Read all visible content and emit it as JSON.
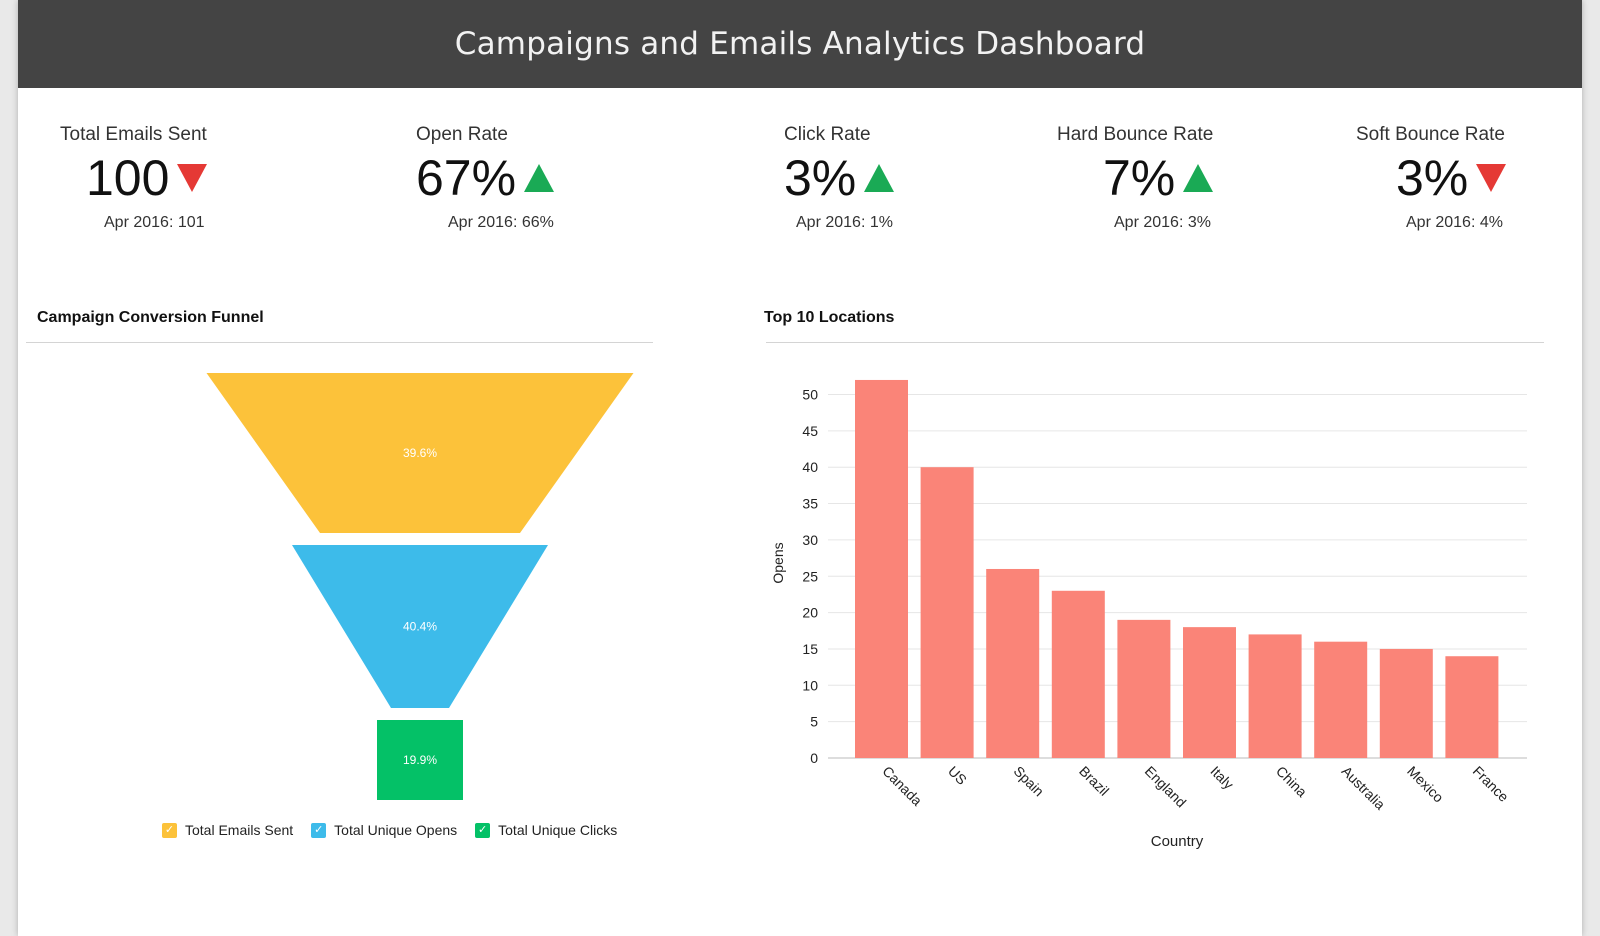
{
  "header": {
    "title": "Campaigns and Emails Analytics Dashboard"
  },
  "kpis": [
    {
      "label": "Total Emails Sent",
      "value": "100",
      "trend": "down",
      "comparison": "Apr 2016: 101"
    },
    {
      "label": "Open Rate",
      "value": "67%",
      "trend": "up",
      "comparison": "Apr 2016: 66%"
    },
    {
      "label": "Click Rate",
      "value": "3%",
      "trend": "up",
      "comparison": "Apr 2016: 1%"
    },
    {
      "label": "Hard Bounce Rate",
      "value": "7%",
      "trend": "up",
      "comparison": "Apr 2016: 3%"
    },
    {
      "label": "Soft Bounce Rate",
      "value": "3%",
      "trend": "down",
      "comparison": "Apr 2016: 4%"
    }
  ],
  "colors": {
    "up": "#1aaa55",
    "down": "#e53935",
    "bar": "#fa8478",
    "header_bg": "#444444"
  },
  "funnel": {
    "title": "Campaign Conversion Funnel",
    "stages": [
      {
        "name": "Total Emails Sent",
        "label": "39.6%",
        "color": "#fcc23a"
      },
      {
        "name": "Total Unique Opens",
        "label": "40.4%",
        "color": "#3dbbea"
      },
      {
        "name": "Total Unique Clicks",
        "label": "19.9%",
        "color": "#04c167"
      }
    ]
  },
  "chart_data": [
    {
      "type": "funnel",
      "title": "Campaign Conversion Funnel",
      "categories": [
        "Total Emails Sent",
        "Total Unique Opens",
        "Total Unique Clicks"
      ],
      "values": [
        39.6,
        40.4,
        19.9
      ],
      "labels": [
        "39.6%",
        "40.4%",
        "19.9%"
      ],
      "legend": "bottom"
    },
    {
      "type": "bar",
      "title": "Top 10 Locations",
      "categories": [
        "Canada",
        "US",
        "Spain",
        "Brazil",
        "England",
        "Italy",
        "China",
        "Australia",
        "Mexico",
        "France"
      ],
      "values": [
        52,
        40,
        26,
        23,
        19,
        18,
        17,
        16,
        15,
        14
      ],
      "xlabel": "Country",
      "ylabel": "Opens",
      "ylim": [
        0,
        53
      ],
      "yticks": [
        0,
        5,
        10,
        15,
        20,
        25,
        30,
        35,
        40,
        45,
        50
      ],
      "grid": true
    }
  ],
  "bar_chart": {
    "title": "Top 10 Locations",
    "xlabel": "Country",
    "ylabel": "Opens"
  }
}
